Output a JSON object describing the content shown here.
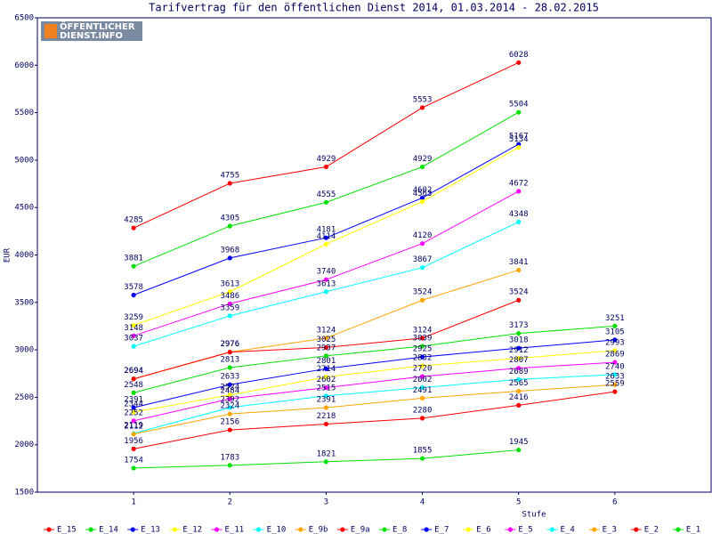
{
  "chart_data": {
    "type": "line",
    "title": "Tarifvertrag für den öffentlichen Dienst 2014, 01.03.2014 - 28.02.2015",
    "annotations": [
      "ÖFFENTLICHER",
      "DIENST.INFO"
    ],
    "x_label": "Stufe",
    "y_label": "EUR",
    "x": [
      1,
      2,
      3,
      4,
      5,
      6
    ],
    "xlim": [
      0,
      7
    ],
    "xticks": [
      1,
      2,
      3,
      4,
      5,
      6
    ],
    "ylim": [
      1500,
      6500
    ],
    "yticks": [
      1500,
      2000,
      2500,
      3000,
      3500,
      4000,
      4500,
      5000,
      5500,
      6000,
      6500
    ],
    "grid": false,
    "legend": "bottom",
    "series": [
      {
        "name": "E_15",
        "color": "#ff0000",
        "values": [
          4285,
          4755,
          4929,
          5553,
          6028,
          null
        ]
      },
      {
        "name": "E_14",
        "color": "#00e000",
        "values": [
          3881,
          4305,
          4555,
          4929,
          5504,
          null
        ]
      },
      {
        "name": "E_13",
        "color": "#0000ff",
        "values": [
          3578,
          3968,
          4181,
          4602,
          5167,
          null
        ]
      },
      {
        "name": "E_12",
        "color": "#ffff00",
        "values": [
          3259,
          3613,
          4114,
          4563,
          5134,
          null
        ]
      },
      {
        "name": "E_11",
        "color": "#ff00ff",
        "values": [
          3148,
          3486,
          3740,
          4120,
          4672,
          null
        ]
      },
      {
        "name": "E_10",
        "color": "#00ffff",
        "values": [
          3037,
          3359,
          3613,
          3867,
          4348,
          null
        ]
      },
      {
        "name": "E_9b",
        "color": "#ffa500",
        "values": [
          2694,
          2976,
          3124,
          3524,
          3841,
          null
        ]
      },
      {
        "name": "E_9a",
        "color": "#ff0000",
        "values": [
          2694,
          2976,
          3025,
          3124,
          3524,
          null
        ]
      },
      {
        "name": "E_8",
        "color": "#00e000",
        "values": [
          2548,
          2813,
          2937,
          3039,
          3173,
          3251
        ]
      },
      {
        "name": "E_7",
        "color": "#0000ff",
        "values": [
          2391,
          2633,
          2801,
          2925,
          3018,
          3105
        ]
      },
      {
        "name": "E_6",
        "color": "#ffff00",
        "values": [
          2344,
          2524,
          2714,
          2832,
          2912,
          2993
        ]
      },
      {
        "name": "E_5",
        "color": "#ff00ff",
        "values": [
          2252,
          2484,
          2602,
          2720,
          2807,
          2869
        ]
      },
      {
        "name": "E_4",
        "color": "#00ffff",
        "values": [
          2119,
          2392,
          2515,
          2602,
          2689,
          2740
        ]
      },
      {
        "name": "E_3",
        "color": "#ffa500",
        "values": [
          2112,
          2324,
          2391,
          2491,
          2565,
          2633
        ]
      },
      {
        "name": "E_2",
        "color": "#ff0000",
        "values": [
          1956,
          2156,
          2218,
          2280,
          2416,
          2559
        ]
      },
      {
        "name": "E_1",
        "color": "#00e000",
        "values": [
          1754,
          1783,
          1821,
          1855,
          1945,
          null
        ]
      }
    ]
  }
}
